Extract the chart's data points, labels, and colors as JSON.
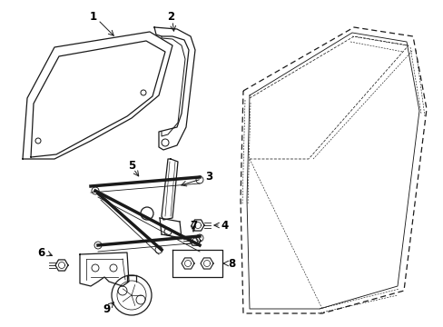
{
  "bg_color": "#ffffff",
  "lc": "#1a1a1a",
  "lw": 0.9,
  "parts_labels": [
    "1",
    "2",
    "3",
    "4",
    "5",
    "6",
    "7",
    "8",
    "9"
  ]
}
